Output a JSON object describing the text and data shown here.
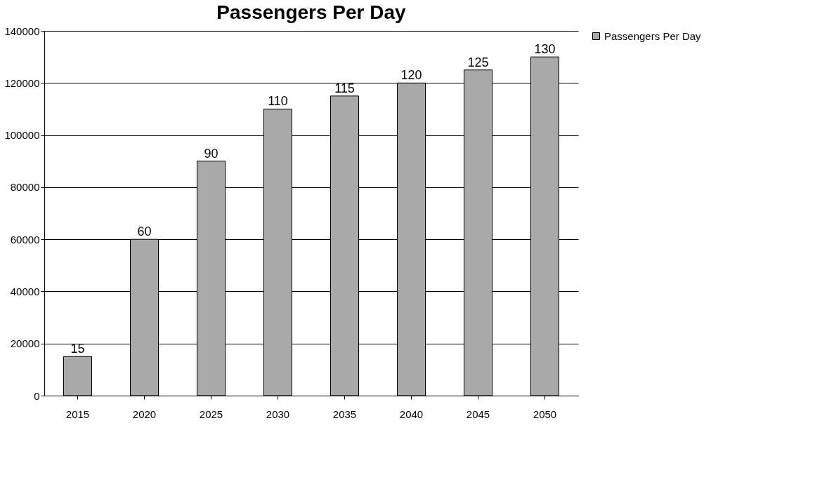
{
  "chart_data": {
    "type": "bar",
    "title": "Passengers Per Day",
    "categories": [
      "2015",
      "2020",
      "2025",
      "2030",
      "2035",
      "2040",
      "2045",
      "2050"
    ],
    "series": [
      {
        "name": "Passengers Per Day",
        "color": "#a9a9a9",
        "values": [
          15000,
          60000,
          90000,
          110000,
          115000,
          120000,
          125000,
          130000
        ]
      }
    ],
    "annotations": [
      {
        "text": "15",
        "x": "2015",
        "y": 15000
      },
      {
        "text": "60",
        "x": "2020",
        "y": 60000
      },
      {
        "text": "90",
        "x": "2025",
        "y": 90000
      },
      {
        "text": "110",
        "x": "2030",
        "y": 110000
      },
      {
        "text": "115",
        "x": "2035",
        "y": 115000
      },
      {
        "text": "120",
        "x": "2040",
        "y": 120000
      },
      {
        "text": "125",
        "x": "2045",
        "y": 125000
      },
      {
        "text": "130",
        "x": "2050",
        "y": 130000
      }
    ],
    "ylim": [
      0,
      140000
    ],
    "yticks": [
      0,
      20000,
      40000,
      60000,
      80000,
      100000,
      120000,
      140000
    ],
    "grid": "y",
    "legend": "right"
  }
}
